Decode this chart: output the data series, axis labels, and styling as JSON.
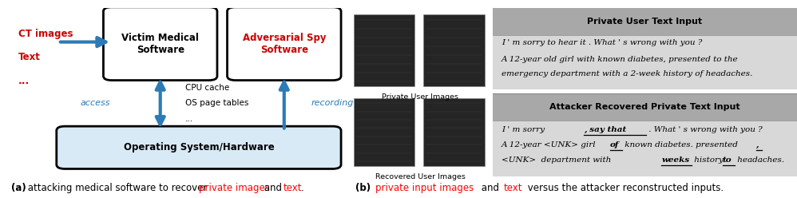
{
  "fig_width": 9.98,
  "fig_height": 2.48,
  "dpi": 100,
  "bg_color": "#ffffff",
  "left_panel": {
    "input_color": "#cc0000",
    "victim_box_label": "Victim Medical\nSoftware",
    "adversarial_box_label": "Adversarial Spy\nSoftware",
    "adversarial_color": "#cc0000",
    "os_box_label": "Operating System/Hardware",
    "middle_labels": [
      "CPU cache",
      "OS page tables",
      "..."
    ],
    "access_label": "access",
    "recording_label": "recording",
    "arrow_color": "#2c7bb6",
    "os_bg_color": "#d9eaf7"
  },
  "caption_a_parts": [
    "(a)",
    " attacking medical software to recover ",
    "private images",
    " and ",
    "text",
    "."
  ],
  "caption_b_parts": [
    "(b)",
    " ",
    "private input images",
    " and ",
    "text",
    " versus the attacker reconstructed inputs."
  ],
  "right_panel": {
    "private_header": "Private User Text Input",
    "private_text1": "I ' m sorry to hear it . What ' s wrong with you ?",
    "private_text2_l1": "A 12-year old girl with known diabetes, presented to the",
    "private_text2_l2": "emergency department with a 2-week history of headaches.",
    "attacker_header": "Attacker Recovered Private Text Input",
    "header_bg": "#a8a8a8",
    "content_bg": "#d8d8d8"
  }
}
